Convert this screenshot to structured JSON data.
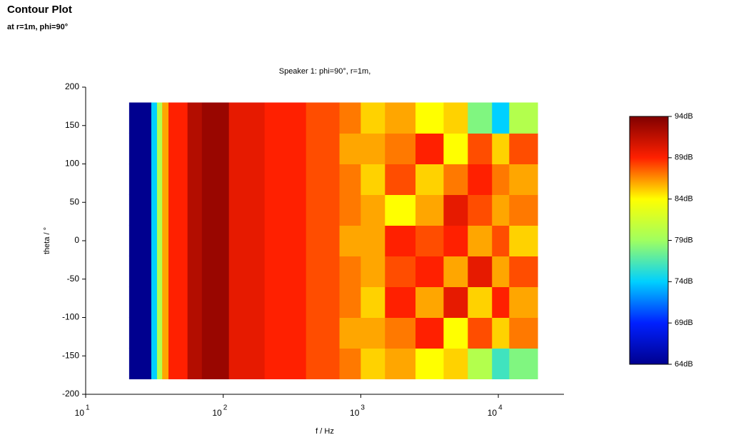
{
  "header": {
    "title": "Contour Plot",
    "subtitle": "at r=1m, phi=90°"
  },
  "chart_data": {
    "type": "heatmap",
    "title": "Speaker 1: phi=90°, r=1m,",
    "x_label": "f / Hz",
    "y_label": "theta / °",
    "x_log": true,
    "xlim": [
      10,
      30000
    ],
    "xticks": [
      {
        "value": 10,
        "label": "10",
        "sup": "1"
      },
      {
        "value": 100,
        "label": "10",
        "sup": "2"
      },
      {
        "value": 1000,
        "label": "10",
        "sup": "3"
      },
      {
        "value": 10000,
        "label": "10",
        "sup": "4"
      }
    ],
    "ylim": [
      -200,
      200
    ],
    "yticks": [
      -200,
      -150,
      -100,
      -50,
      0,
      50,
      100,
      150,
      200
    ],
    "x_bins": [
      20.7,
      30,
      33,
      36,
      40,
      55,
      70,
      110,
      200,
      400,
      700,
      1000,
      1500,
      2500,
      4000,
      6000,
      9000,
      12000,
      19300
    ],
    "y_bins": [
      -180,
      -140,
      -100,
      -60,
      -20,
      20,
      60,
      100,
      140,
      180
    ],
    "values": [
      [
        64,
        74,
        80,
        86,
        89,
        92,
        93,
        90,
        89,
        88,
        87,
        85,
        86,
        84,
        85,
        80,
        76,
        78
      ],
      [
        64,
        74,
        80,
        86,
        89,
        92,
        93,
        90,
        89,
        88,
        86,
        86,
        87,
        89,
        84,
        88,
        85,
        87
      ],
      [
        64,
        74,
        80,
        86,
        89,
        92,
        93,
        90,
        89,
        88,
        87,
        85,
        89,
        86,
        90,
        85,
        89,
        86
      ],
      [
        64,
        74,
        80,
        86,
        89,
        92,
        93,
        90,
        89,
        88,
        87,
        86,
        88,
        89,
        86,
        90,
        86,
        88
      ],
      [
        64,
        74,
        80,
        86,
        89,
        92,
        93,
        90,
        89,
        88,
        86,
        86,
        89,
        88,
        89,
        86,
        88,
        85
      ],
      [
        64,
        74,
        80,
        86,
        89,
        92,
        93,
        90,
        89,
        88,
        87,
        86,
        84,
        86,
        90,
        88,
        86,
        87
      ],
      [
        64,
        74,
        80,
        86,
        89,
        92,
        93,
        90,
        89,
        88,
        87,
        85,
        88,
        85,
        87,
        89,
        87,
        86
      ],
      [
        64,
        74,
        80,
        86,
        89,
        92,
        93,
        90,
        89,
        88,
        86,
        86,
        87,
        89,
        84,
        88,
        85,
        88
      ],
      [
        64,
        74,
        80,
        86,
        89,
        92,
        93,
        90,
        89,
        88,
        87,
        85,
        86,
        84,
        85,
        78,
        74,
        80
      ]
    ],
    "clim": [
      64,
      94
    ],
    "colormap": [
      "#00008f",
      "#0020ff",
      "#00d0ff",
      "#a0ff60",
      "#ffff00",
      "#ff2000",
      "#800000"
    ],
    "cticks": [
      {
        "value": 64,
        "label": "64dB"
      },
      {
        "value": 69,
        "label": "69dB"
      },
      {
        "value": 74,
        "label": "74dB"
      },
      {
        "value": 79,
        "label": "79dB"
      },
      {
        "value": 84,
        "label": "84dB"
      },
      {
        "value": 89,
        "label": "89dB"
      },
      {
        "value": 94,
        "label": "94dB"
      }
    ]
  }
}
